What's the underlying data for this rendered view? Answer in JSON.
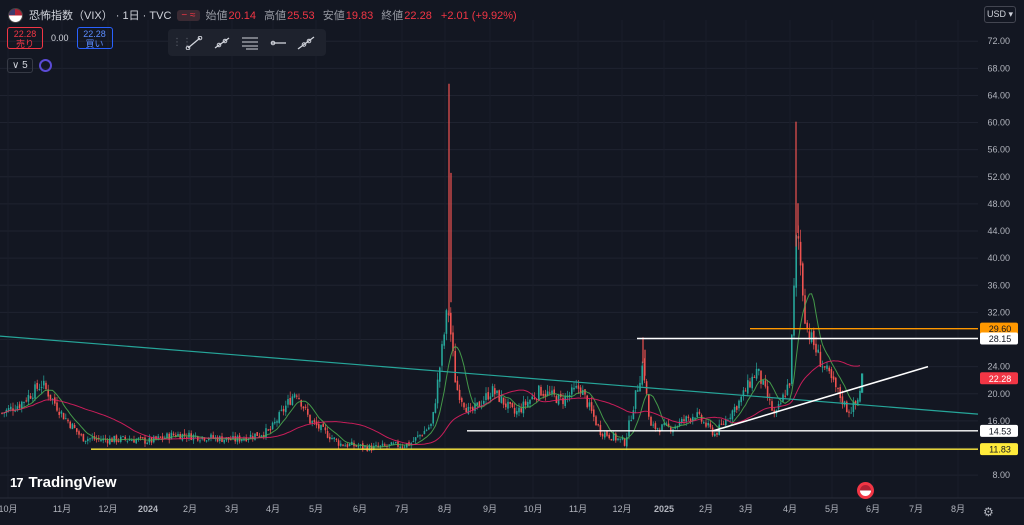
{
  "header": {
    "symbol": "恐怖指数（VIX） · 1日 · TVC",
    "open_label": "始値",
    "open": "20.14",
    "high_label": "高値",
    "high": "25.53",
    "low_label": "安値",
    "low": "19.83",
    "close_label": "終値",
    "close": "22.28",
    "change": "+2.01 (+9.92%)",
    "currency": "USD"
  },
  "trade": {
    "sell_price": "22.28",
    "sell_label": "売り",
    "spread": "0.00",
    "buy_price": "22.28",
    "buy_label": "買い"
  },
  "indicator_count": "5",
  "toolbar_icons": [
    "trend-line-icon",
    "ray-icon",
    "parallel-lines-icon",
    "horizontal-ray-icon",
    "extended-line-icon"
  ],
  "brand": "TradingView",
  "colors": {
    "background": "#131722",
    "up": "#26a69a",
    "down": "#ef5350",
    "sma_green": "#4caf50",
    "sma_pink": "#e91e63",
    "trendline": "#26a69a",
    "support_white": "#ffffff",
    "support_yellow": "#ffeb3b",
    "resistance_orange": "#ff9800"
  },
  "chart_data": {
    "type": "candlestick",
    "y_axis": {
      "min": 8,
      "max": 72,
      "step": 4,
      "side": "right",
      "ticks": [
        "72.00",
        "68.00",
        "64.00",
        "60.00",
        "56.00",
        "52.00",
        "48.00",
        "44.00",
        "40.00",
        "36.00",
        "32.00",
        "28.00",
        "24.00",
        "20.00",
        "16.00",
        "12.00",
        "8.00"
      ]
    },
    "x_axis": {
      "labels": [
        "10月",
        "11月",
        "12月",
        "2024",
        "2月",
        "3月",
        "4月",
        "5月",
        "6月",
        "7月",
        "8月",
        "9月",
        "10月",
        "11月",
        "12月",
        "2025",
        "2月",
        "3月",
        "4月",
        "5月",
        "6月",
        "7月",
        "8月"
      ]
    },
    "price_markers": [
      {
        "value": "29.60",
        "color": "#ff9800"
      },
      {
        "value": "28.15",
        "color": "#ffffff"
      },
      {
        "value": "22.28",
        "color": "#f23645"
      },
      {
        "value": "14.53",
        "color": "#ffffff"
      },
      {
        "value": "11.83",
        "color": "#ffeb3b"
      }
    ],
    "horizontal_lines": [
      {
        "value": 29.6,
        "from": "2025-02",
        "color": "#ff9800"
      },
      {
        "value": 28.15,
        "from": "2024-12",
        "color": "#ffffff"
      },
      {
        "value": 14.53,
        "from": "2024-08",
        "color": "#ffffff"
      },
      {
        "value": 11.83,
        "from": "2023-11",
        "color": "#ffeb3b"
      }
    ],
    "trend_lines": [
      {
        "name": "descending",
        "from": [
          "2023-10",
          28.5
        ],
        "to": [
          "2025-08",
          17.0
        ],
        "color": "#26a69a"
      },
      {
        "name": "ascending",
        "from": [
          "2025-02",
          14.53
        ],
        "to": [
          "2025-07",
          24.0
        ],
        "color": "#ffffff"
      }
    ],
    "keypoints": [
      [
        0,
        17
      ],
      [
        20,
        18.5
      ],
      [
        42,
        21.5
      ],
      [
        62,
        17
      ],
      [
        82,
        13.5
      ],
      [
        104,
        13.2
      ],
      [
        130,
        13.3
      ],
      [
        150,
        13
      ],
      [
        175,
        14
      ],
      [
        205,
        13.6
      ],
      [
        235,
        13.2
      ],
      [
        270,
        14.5
      ],
      [
        296,
        20.5
      ],
      [
        310,
        16
      ],
      [
        340,
        12.6
      ],
      [
        372,
        12
      ],
      [
        410,
        12.6
      ],
      [
        432,
        15.5
      ],
      [
        448,
        33
      ],
      [
        456,
        21
      ],
      [
        470,
        17
      ],
      [
        492,
        20.5
      ],
      [
        515,
        17
      ],
      [
        540,
        20.5
      ],
      [
        562,
        19
      ],
      [
        580,
        21
      ],
      [
        600,
        14.5
      ],
      [
        625,
        12.8
      ],
      [
        643,
        24.5
      ],
      [
        650,
        15
      ],
      [
        672,
        15
      ],
      [
        695,
        17
      ],
      [
        715,
        14
      ],
      [
        740,
        19
      ],
      [
        757,
        23.5
      ],
      [
        775,
        16.5
      ],
      [
        790,
        22
      ],
      [
        797,
        45
      ],
      [
        806,
        30
      ],
      [
        820,
        25
      ],
      [
        835,
        21
      ],
      [
        848,
        17.5
      ],
      [
        857,
        18.5
      ],
      [
        862,
        22.3
      ]
    ],
    "spikes": [
      {
        "date": "2024-08-05",
        "high": 65.73
      },
      {
        "date": "2025-04-08",
        "high": 60.13
      },
      {
        "date": "2024-12-18",
        "high": 28.32
      }
    ],
    "last": 22.28
  }
}
